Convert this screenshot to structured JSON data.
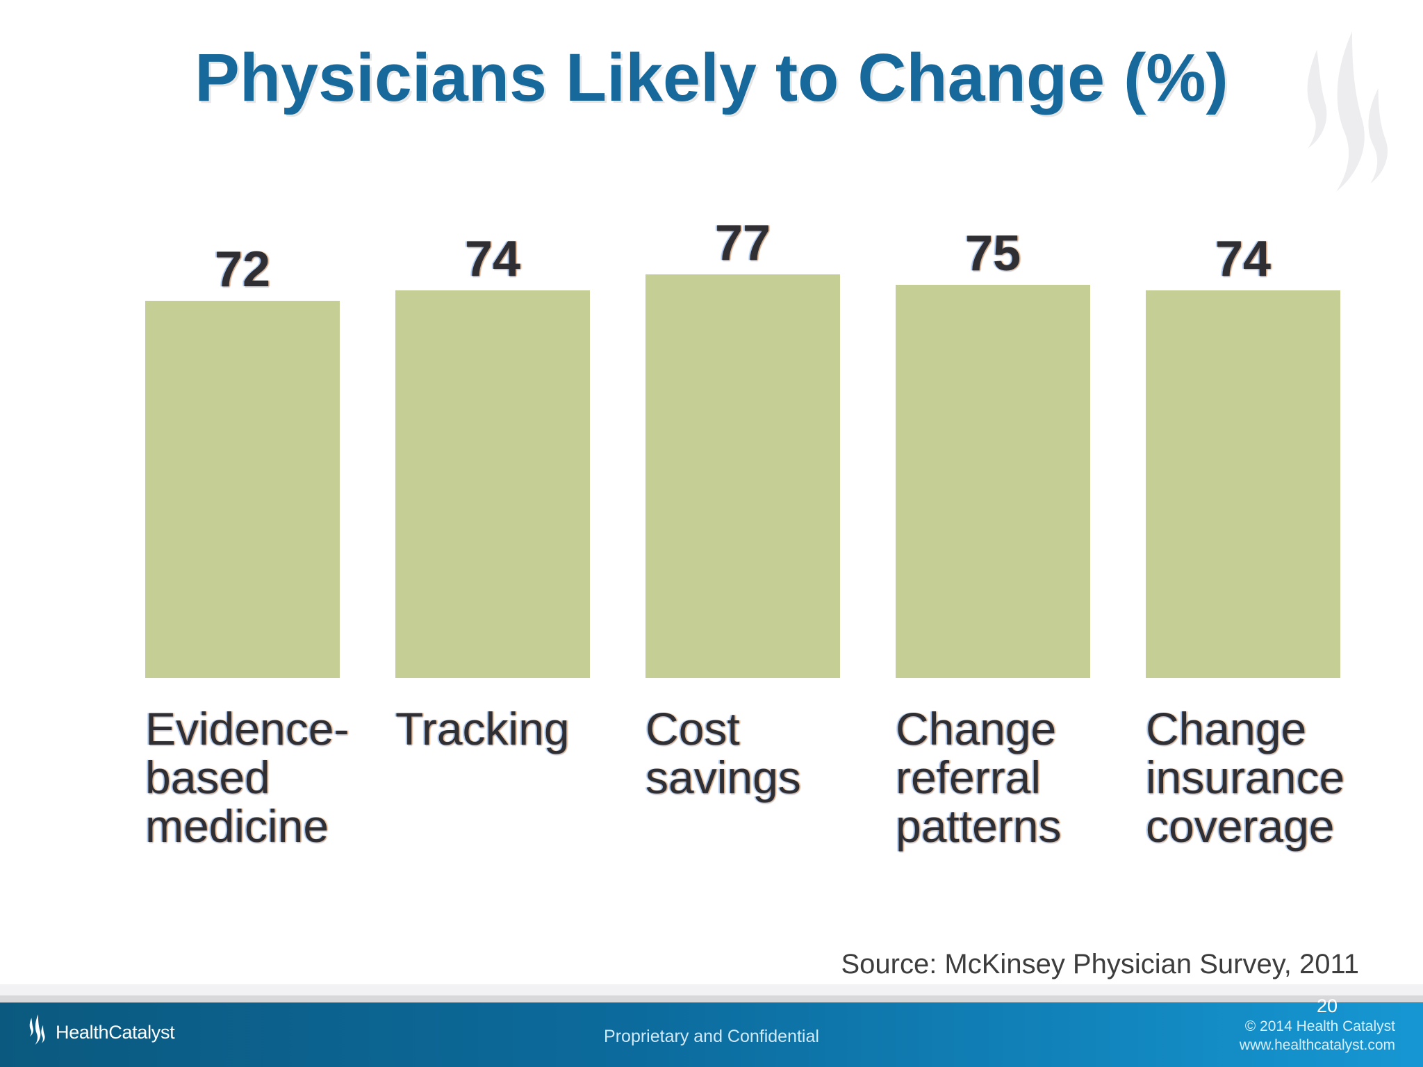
{
  "slide": {
    "title": "Physicians Likely to Change (%)",
    "source_note": "Source: McKinsey Physician Survey, 2011"
  },
  "chart_data": {
    "type": "bar",
    "title": "Physicians Likely to Change (%)",
    "unit": "percent of physicians",
    "categories": [
      "Evidence-based medicine",
      "Tracking",
      "Cost savings",
      "Change referral patterns",
      "Change insurance coverage"
    ],
    "category_lines": [
      [
        "Evidence-",
        "based",
        "medicine"
      ],
      [
        "Tracking"
      ],
      [
        "Cost",
        "savings"
      ],
      [
        "Change",
        "referral",
        "patterns"
      ],
      [
        "Change",
        "insurance",
        "coverage"
      ]
    ],
    "values": [
      72,
      74,
      77,
      75,
      74
    ],
    "ylim": [
      0,
      100
    ],
    "grid": false,
    "legend": false,
    "data_labels": true,
    "bar_color": "#c4ce95",
    "source": "Source: McKinsey Physician Survey, 2011"
  },
  "footer": {
    "logo_text": "HealthCatalyst",
    "center_text": "Proprietary and Confidential",
    "copyright_line1": "© 2014 Health Catalyst",
    "copyright_line2": "www.healthcatalyst.com",
    "page_number": "20"
  },
  "colors": {
    "title_blue": "#17699b",
    "bar_green": "#c4ce95",
    "footer_gradient_left": "#0b597f",
    "footer_gradient_right": "#1697d3",
    "watermark_gray": "#ededef",
    "chart_text": "#2f2f33"
  },
  "icons": {
    "watermark": "healthcatalyst-flame-watermark",
    "footer_logo": "healthcatalyst-flame-logo"
  }
}
